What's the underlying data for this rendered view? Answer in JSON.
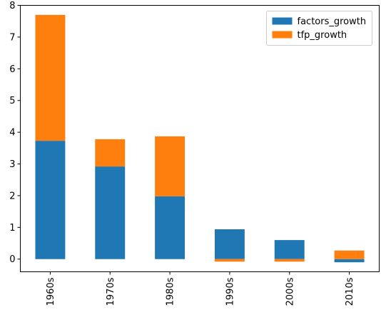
{
  "chart_data": {
    "type": "bar",
    "stacked": true,
    "categories": [
      "1960s",
      "1970s",
      "1980s",
      "1990s",
      "2000s",
      "2010s"
    ],
    "series": [
      {
        "name": "factors_growth",
        "color": "#1f77b4",
        "values": [
          3.73,
          2.92,
          1.98,
          0.94,
          0.6,
          -0.1
        ]
      },
      {
        "name": "tfp_growth",
        "color": "#ff7f0e",
        "values": [
          3.97,
          0.86,
          1.89,
          -0.08,
          -0.08,
          0.27
        ]
      }
    ],
    "ylim": [
      -0.4,
      8.0
    ],
    "yticks": [
      0,
      1,
      2,
      3,
      4,
      5,
      6,
      7,
      8
    ],
    "xtick_rotation": 90,
    "legend_position": "top-right",
    "title": "",
    "xlabel": "",
    "ylabel": ""
  }
}
